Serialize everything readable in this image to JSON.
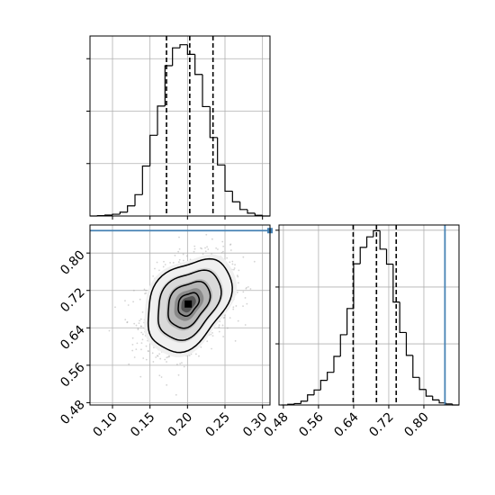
{
  "chart_data": [
    {
      "type": "histogram",
      "panel": "top-left",
      "variable_index": 0,
      "xlim": [
        0.07,
        0.31
      ],
      "grid": true,
      "bin_edges": [
        0.07,
        0.08,
        0.09,
        0.1,
        0.11,
        0.12,
        0.13,
        0.14,
        0.15,
        0.16,
        0.17,
        0.18,
        0.19,
        0.2,
        0.21,
        0.22,
        0.23,
        0.24,
        0.25,
        0.26,
        0.27,
        0.28,
        0.29,
        0.3,
        0.31
      ],
      "counts": [
        0.0,
        0.002,
        0.005,
        0.01,
        0.022,
        0.058,
        0.122,
        0.286,
        0.462,
        0.629,
        0.86,
        0.962,
        0.98,
        0.925,
        0.81,
        0.626,
        0.449,
        0.292,
        0.142,
        0.081,
        0.037,
        0.016,
        0.004,
        0.0
      ],
      "quantiles": [
        0.172,
        0.203,
        0.234
      ]
    },
    {
      "type": "histogram",
      "panel": "bottom-right",
      "variable_index": 1,
      "xlim": [
        0.47,
        0.88
      ],
      "grid": true,
      "bin_edges": [
        0.475,
        0.49,
        0.505,
        0.52,
        0.535,
        0.55,
        0.565,
        0.58,
        0.595,
        0.61,
        0.625,
        0.64,
        0.655,
        0.67,
        0.685,
        0.7,
        0.715,
        0.73,
        0.745,
        0.76,
        0.775,
        0.79,
        0.805,
        0.82,
        0.835,
        0.85,
        0.865,
        0.88
      ],
      "counts": [
        0.0,
        0.004,
        0.008,
        0.022,
        0.058,
        0.086,
        0.141,
        0.187,
        0.278,
        0.402,
        0.552,
        0.808,
        0.902,
        0.962,
        0.997,
        0.892,
        0.806,
        0.589,
        0.415,
        0.284,
        0.158,
        0.089,
        0.051,
        0.029,
        0.012,
        0.006,
        0.0
      ],
      "quantiles": [
        0.639,
        0.692,
        0.737
      ],
      "truth_value": 0.848,
      "truth_color": "#4682b4"
    },
    {
      "type": "scatter-contour",
      "panel": "bottom-left",
      "xlim": [
        0.07,
        0.31
      ],
      "ylim": [
        0.475,
        0.86
      ],
      "grid": true,
      "x_ticks": [
        0.1,
        0.15,
        0.2,
        0.25,
        0.3
      ],
      "x_tick_labels": [
        "0.10",
        "0.15",
        "0.20",
        "0.25",
        "0.30"
      ],
      "y_ticks": [
        0.48,
        0.56,
        0.64,
        0.72,
        0.8
      ],
      "y_tick_labels": [
        "0.48",
        "0.56",
        "0.64",
        "0.72",
        "0.80"
      ],
      "contour_center": [
        0.201,
        0.691
      ],
      "contour_levels_sigma": [
        0.5,
        1.0,
        1.5,
        2.0
      ],
      "sigma": [
        0.028,
        0.049
      ],
      "correlation": 0.35,
      "truth_value_y": 0.848,
      "truth_color": "#4682b4"
    },
    {
      "type": "axis-ticks",
      "panel": "bottom-right",
      "x_ticks": [
        0.48,
        0.56,
        0.64,
        0.72,
        0.8
      ],
      "x_tick_labels": [
        "0.48",
        "0.56",
        "0.64",
        "0.72",
        "0.80"
      ]
    }
  ]
}
